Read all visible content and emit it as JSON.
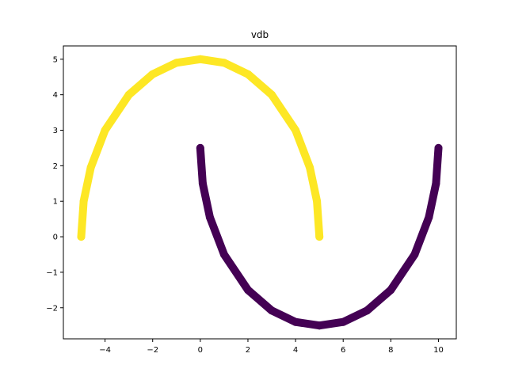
{
  "chart_data": {
    "type": "scatter",
    "title": "vdb",
    "xlabel": "",
    "ylabel": "",
    "xlim": [
      -5.75,
      10.75
    ],
    "ylim": [
      -2.875,
      5.375
    ],
    "grid": false,
    "xticks": [
      -4,
      -2,
      0,
      2,
      4,
      6,
      8,
      10
    ],
    "yticks": [
      -2,
      -1,
      0,
      1,
      2,
      3,
      4,
      5
    ],
    "xtick_labels": [
      "−4",
      "−2",
      "0",
      "2",
      "4",
      "6",
      "8",
      "10"
    ],
    "ytick_labels": [
      "−2",
      "−1",
      "0",
      "1",
      "2",
      "3",
      "4",
      "5"
    ],
    "series": [
      {
        "color": "#fde725",
        "shape": "upper half-ellipse",
        "points": [
          [
            -5.0,
            0.0
          ],
          [
            -4.9,
            1.0
          ],
          [
            -4.6,
            1.95
          ],
          [
            -4.0,
            3.0
          ],
          [
            -3.0,
            4.0
          ],
          [
            -2.0,
            4.58
          ],
          [
            -1.0,
            4.9
          ],
          [
            0.0,
            5.0
          ],
          [
            1.0,
            4.9
          ],
          [
            2.0,
            4.58
          ],
          [
            3.0,
            4.0
          ],
          [
            4.0,
            3.0
          ],
          [
            4.6,
            1.95
          ],
          [
            4.9,
            1.0
          ],
          [
            5.0,
            0.0
          ]
        ]
      },
      {
        "color": "#440154",
        "shape": "lower half-ellipse",
        "points": [
          [
            0.0,
            2.5
          ],
          [
            0.1,
            1.5
          ],
          [
            0.4,
            0.55
          ],
          [
            1.0,
            -0.5
          ],
          [
            2.0,
            -1.5
          ],
          [
            3.0,
            -2.08
          ],
          [
            4.0,
            -2.4
          ],
          [
            5.0,
            -2.5
          ],
          [
            6.0,
            -2.4
          ],
          [
            7.0,
            -2.08
          ],
          [
            8.0,
            -1.5
          ],
          [
            9.0,
            -0.5
          ],
          [
            9.6,
            0.55
          ],
          [
            9.9,
            1.5
          ],
          [
            10.0,
            2.5
          ]
        ]
      }
    ]
  }
}
